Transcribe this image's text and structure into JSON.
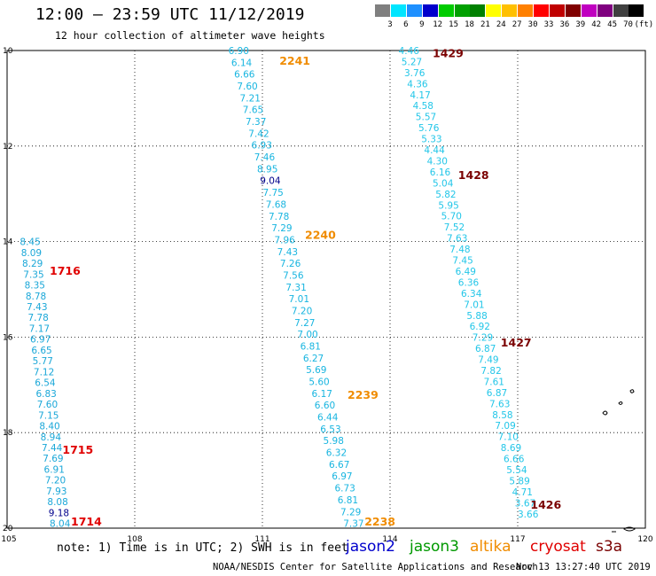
{
  "header": {
    "title": "12:00 — 23:59 UTC 11/12/2019",
    "subtitle": "12 hour collection of altimeter wave heights"
  },
  "legend": {
    "colors": [
      "#7f7f7f",
      "#00e5ff",
      "#1e90ff",
      "#0000cc",
      "#00cc00",
      "#00a000",
      "#008000",
      "#ffff00",
      "#ffc000",
      "#ff8000",
      "#ff0000",
      "#c00000",
      "#800000",
      "#c000c0",
      "#800080",
      "#404040",
      "#000000"
    ],
    "levels": [
      "3",
      "6",
      "9",
      "12",
      "15",
      "18",
      "21",
      "24",
      "27",
      "30",
      "33",
      "36",
      "39",
      "42",
      "45",
      "70",
      "(ft)"
    ]
  },
  "axes": {
    "lon_ticks": [
      "105",
      "108",
      "111",
      "114",
      "117",
      "120"
    ],
    "lat_ticks": [
      "10",
      "12",
      "14",
      "16",
      "18",
      "20"
    ]
  },
  "tracks": [
    {
      "color": "#1aa7d8",
      "lon_start": 105.3,
      "lon_end": 106.0,
      "lat_start": 14.0,
      "lat_end": 19.9,
      "values": [
        "8.45",
        "8.09",
        "8.29",
        "7.35",
        "8.35",
        "8.78",
        "7.43",
        "7.78",
        "7.17",
        "6.97",
        "6.65",
        "5.77",
        "7.12",
        "6.54",
        "6.83",
        "7.60",
        "7.15",
        "8.40",
        "8.94",
        "7.44",
        "7.69",
        "6.91",
        "7.20",
        "7.93",
        "8.08",
        "9.18",
        "8.04"
      ],
      "highlight": {
        "9.18": "#00008b"
      },
      "times": [
        {
          "label": "1716",
          "lat": 14.6,
          "lon": 106.0
        },
        {
          "label": "1715",
          "lat": 18.35,
          "lon": 106.3
        },
        {
          "label": "1714",
          "lat": 19.85,
          "lon": 106.5
        }
      ],
      "time_color": "#e00000"
    },
    {
      "color": "#18b5e0",
      "lon_start": 110.2,
      "lon_end": 112.9,
      "lat_start": 10.0,
      "lat_end": 19.9,
      "values": [
        "6.90",
        "6.14",
        "6.66",
        "7.60",
        "7.21",
        "7.65",
        "7.37",
        "7.42",
        "6.93",
        "7.46",
        "8.95",
        "9.04",
        "7.75",
        "7.68",
        "7.78",
        "7.29",
        "7.96",
        "7.43",
        "7.26",
        "7.56",
        "7.31",
        "7.01",
        "7.20",
        "7.27",
        "7.00",
        "6.81",
        "6.27",
        "5.69",
        "5.60",
        "6.17",
        "6.60",
        "6.44",
        "6.53",
        "5.98",
        "6.32",
        "6.67",
        "6.97",
        "6.73",
        "6.81",
        "7.29",
        "7.37"
      ],
      "highlight": {
        "9.04": "#00008b"
      },
      "times": [
        {
          "label": "2241",
          "lat": 10.2,
          "lon": 111.4
        },
        {
          "label": "2240",
          "lat": 13.85,
          "lon": 112.0
        },
        {
          "label": "2239",
          "lat": 17.2,
          "lon": 113.0
        },
        {
          "label": "2238",
          "lat": 19.85,
          "lon": 113.4
        }
      ],
      "time_color": "#f08c00"
    },
    {
      "color": "#22c6e8",
      "lon_start": 114.2,
      "lon_end": 117.0,
      "lat_start": 10.0,
      "lat_end": 19.7,
      "values": [
        "4.46",
        "5.27",
        "3.76",
        "4.36",
        "4.17",
        "4.58",
        "5.57",
        "5.76",
        "5.33",
        "4.44",
        "4.30",
        "6.16",
        "5.04",
        "5.82",
        "5.95",
        "5.70",
        "7.52",
        "7.63",
        "7.48",
        "7.45",
        "6.49",
        "6.36",
        "6.34",
        "7.01",
        "5.88",
        "6.92",
        "7.29",
        "6.87",
        "7.49",
        "7.82",
        "7.61",
        "6.87",
        "7.63",
        "8.58",
        "7.09",
        "7.10",
        "8.69",
        "6.66",
        "5.54",
        "5.89",
        "4.71",
        "3.67",
        "3.66"
      ],
      "highlight": {},
      "times": [
        {
          "label": "1429",
          "lat": 10.05,
          "lon": 115.0
        },
        {
          "label": "1428",
          "lat": 12.6,
          "lon": 115.6
        },
        {
          "label": "1427",
          "lat": 16.1,
          "lon": 116.6
        },
        {
          "label": "1426",
          "lat": 19.5,
          "lon": 117.3
        }
      ],
      "time_color": "#7a0000"
    }
  ],
  "footer": {
    "note": "note: 1) Time is in UTC; 2) SWH is in feet",
    "satellites": [
      {
        "name": "jason2",
        "color": "#0000cc"
      },
      {
        "name": "jason3",
        "color": "#009900"
      },
      {
        "name": "altika",
        "color": "#f08c00"
      },
      {
        "name": "cryosat",
        "color": "#e00000"
      },
      {
        "name": "s3a",
        "color": "#7a0000"
      }
    ],
    "credit": "NOAA/NESDIS Center for Satellite Applications and Research",
    "timestamp": "Nov 13 13:27:40 UTC 2019"
  }
}
